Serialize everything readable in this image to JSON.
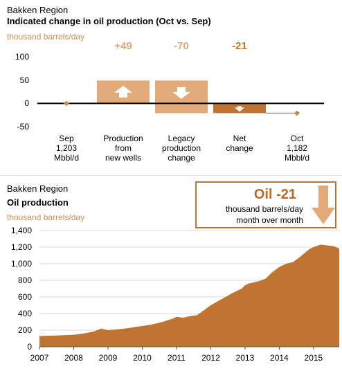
{
  "waterfall": {
    "region": "Bakken Region",
    "title": "Indicated change in oil production (Oct vs. Sep)",
    "unit": "thousand barrels/day",
    "colors": {
      "light": "#e2aa78",
      "dark": "#c07432",
      "marker": "#c48a52"
    },
    "chart_data": {
      "type": "bar",
      "subtype": "waterfall",
      "ylim": [
        -50,
        100
      ],
      "yticks": [
        "100",
        "50",
        "0",
        "-50"
      ],
      "categories": [
        {
          "lines": [
            "Sep",
            "1,203",
            "Mbbl/d"
          ]
        },
        {
          "lines": [
            "Production",
            "from",
            "new wells"
          ]
        },
        {
          "lines": [
            "Legacy",
            "production",
            "change"
          ]
        },
        {
          "lines": [
            "Net",
            "change"
          ]
        },
        {
          "lines": [
            "Oct",
            "1,182",
            "Mbbl/d"
          ]
        }
      ],
      "values": [
        0,
        49,
        -70,
        -21,
        -21
      ],
      "delta_labels": [
        "",
        "+49",
        "-70",
        "-21",
        ""
      ]
    }
  },
  "production": {
    "region": "Bakken Region",
    "title": "Oil production",
    "unit": "thousand barrels/day",
    "callout": {
      "headline": "Oil -21",
      "line1": "thousand barrels/day",
      "line2": "month over month"
    },
    "colors": {
      "fill": "#c07432",
      "box": "#c07432",
      "text": "#b86a28",
      "arrow": "#e2aa78"
    },
    "chart_data": {
      "type": "area",
      "ylim": [
        0,
        1400
      ],
      "yticks": [
        "1,400",
        "1,200",
        "1,000",
        "800",
        "600",
        "400",
        "200",
        "0"
      ],
      "xticks": [
        "2007",
        "2008",
        "2009",
        "2010",
        "2011",
        "2012",
        "2013",
        "2014",
        "2015"
      ],
      "x_start": 2007.0,
      "x_end": 2015.75,
      "x": [
        2007.0,
        2007.5,
        2008.0,
        2008.3,
        2008.6,
        2008.8,
        2009.0,
        2009.3,
        2009.6,
        2009.9,
        2010.0,
        2010.3,
        2010.6,
        2010.9,
        2011.0,
        2011.2,
        2011.4,
        2011.6,
        2011.8,
        2012.0,
        2012.3,
        2012.6,
        2012.9,
        2013.0,
        2013.1,
        2013.2,
        2013.4,
        2013.6,
        2013.8,
        2014.0,
        2014.2,
        2014.4,
        2014.6,
        2014.8,
        2014.9,
        2015.0,
        2015.2,
        2015.4,
        2015.6,
        2015.75
      ],
      "values": [
        130,
        135,
        145,
        160,
        185,
        220,
        200,
        210,
        225,
        245,
        250,
        270,
        300,
        340,
        360,
        350,
        370,
        380,
        440,
        500,
        570,
        640,
        700,
        740,
        760,
        770,
        790,
        820,
        900,
        960,
        1000,
        1020,
        1080,
        1150,
        1180,
        1200,
        1230,
        1220,
        1210,
        1182
      ]
    }
  }
}
